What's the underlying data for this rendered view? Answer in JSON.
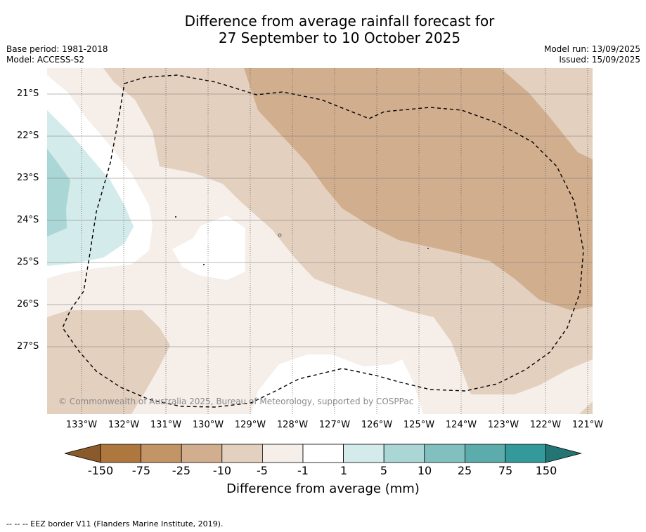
{
  "title_line1": "Difference from average rainfall forecast for",
  "title_line2": "27 September to 10 October 2025",
  "base_period": "Base period: 1981-2018",
  "model": "Model: ACCESS-S2",
  "model_run": "Model run: 13/09/2025",
  "issued": "Issued: 15/09/2025",
  "map": {
    "lat_labels": [
      "21°S",
      "22°S",
      "23°S",
      "24°S",
      "25°S",
      "26°S",
      "27°S"
    ],
    "lon_labels": [
      "133°W",
      "132°W",
      "131°W",
      "130°W",
      "129°W",
      "128°W",
      "127°W",
      "126°W",
      "125°W",
      "124°W",
      "123°W",
      "122°W",
      "121°W"
    ],
    "copyright": "© Commonwealth of Australia 2025, Bureau of Meteorology, supported by COSPPac"
  },
  "colorbar": {
    "ticks": [
      "-150",
      "-75",
      "-25",
      "-10",
      "-5",
      "-1",
      "1",
      "5",
      "10",
      "25",
      "75",
      "150"
    ],
    "colors": [
      "#ad773d",
      "#c29466",
      "#d1ae8e",
      "#e3d0bf",
      "#f5eee9",
      "#ffffff",
      "#d3ebea",
      "#aad6d5",
      "#82c0bf",
      "#5bacab",
      "#34999a"
    ],
    "under_color": "#8a5a2b",
    "over_color": "#237573",
    "label": "Difference from average (mm)"
  },
  "legend_note": "--  --  -- EEZ border V11 (Flanders Marine Institute, 2019)."
}
